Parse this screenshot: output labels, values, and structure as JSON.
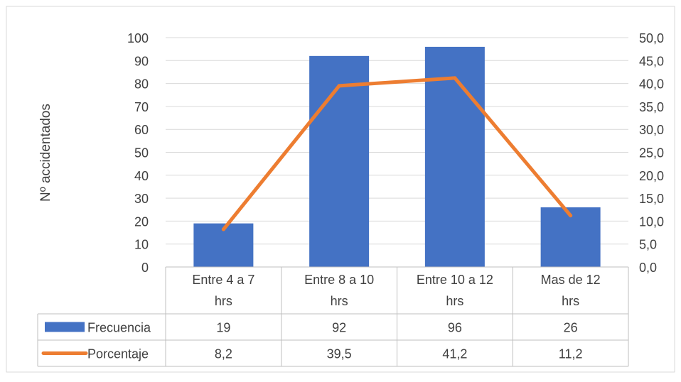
{
  "chart_data": {
    "type": "bar",
    "categories": [
      [
        "Entre 4 a 7",
        "hrs"
      ],
      [
        "Entre 8 a 10",
        "hrs"
      ],
      [
        "Entre 10 a 12",
        "hrs"
      ],
      [
        "Mas de 12",
        "hrs"
      ]
    ],
    "series": [
      {
        "name": "Frecuencia",
        "type": "bar",
        "axis": "left",
        "color": "#4472C4",
        "values": [
          19,
          92,
          96,
          26
        ],
        "labels": [
          "19",
          "92",
          "96",
          "26"
        ]
      },
      {
        "name": "Porcentaje",
        "type": "line",
        "axis": "right",
        "color": "#ED7D31",
        "values": [
          8.2,
          39.5,
          41.2,
          11.2
        ],
        "labels": [
          "8,2",
          "39,5",
          "41,2",
          "11,2"
        ]
      }
    ],
    "ylabel": "Nº accidentados",
    "ylim": [
      0,
      100
    ],
    "y2lim": [
      0,
      50
    ],
    "yticks": [
      "0",
      "10",
      "20",
      "30",
      "40",
      "50",
      "60",
      "70",
      "80",
      "90",
      "100"
    ],
    "y2ticks": [
      "0,0",
      "5,0",
      "10,0",
      "15,0",
      "20,0",
      "25,0",
      "30,0",
      "35,0",
      "40,0",
      "45,0",
      "50,0"
    ],
    "grid": true,
    "legend": "data-table"
  }
}
